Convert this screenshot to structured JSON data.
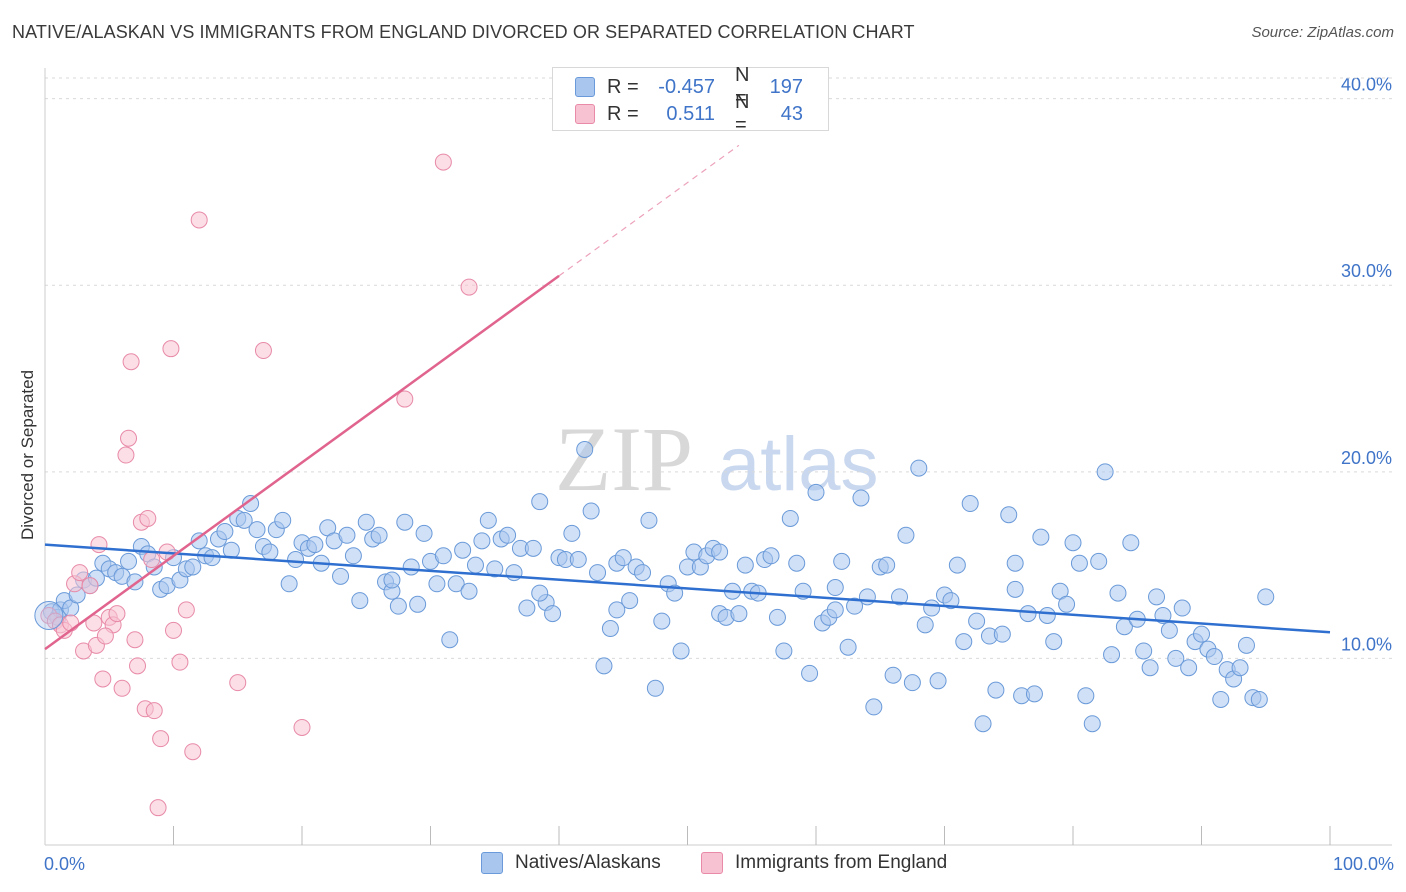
{
  "header": {
    "title": "NATIVE/ALASKAN VS IMMIGRANTS FROM ENGLAND DIVORCED OR SEPARATED CORRELATION CHART",
    "source": "Source: ZipAtlas.com"
  },
  "watermark": {
    "zip": "ZIP",
    "atlas": "atlas"
  },
  "legend_stats": [
    {
      "r_label": "R =",
      "r_value": "-0.457",
      "n_label": "N =",
      "n_value": "197",
      "color": "#a9c6ee",
      "border": "#6a9ad9"
    },
    {
      "r_label": "R =",
      "r_value": "0.511",
      "n_label": "N =",
      "n_value": "43",
      "color": "#f7c3d2",
      "border": "#e88aa8"
    }
  ],
  "bottom_legend": {
    "native": "Natives/Alaskans",
    "england": "Immigrants from England"
  },
  "chart_data": {
    "type": "scatter",
    "title": "NATIVE/ALASKAN VS IMMIGRANTS FROM ENGLAND DIVORCED OR SEPARATED CORRELATION CHART",
    "ylabel": "Divorced or Separated",
    "xlabel": "",
    "xlim": [
      0,
      100
    ],
    "ylim": [
      0,
      40
    ],
    "x_ticks_labels": [
      "0.0%",
      "100.0%"
    ],
    "y_ticks": [
      10,
      20,
      30,
      40
    ],
    "y_tick_labels": [
      "10.0%",
      "20.0%",
      "30.0%",
      "40.0%"
    ],
    "grid": true,
    "colors": {
      "native": "#6a9ad9",
      "native_fill": "#a9c6ee",
      "native_line": "#2f6fcf",
      "england": "#e88aa8",
      "england_fill": "#f7c3d2",
      "england_line": "#e0648e"
    },
    "series": [
      {
        "name": "Natives/Alaskans",
        "trend": {
          "x": [
            0,
            100
          ],
          "y": [
            16.1,
            11.4
          ]
        },
        "points": [
          [
            0.5,
            12.5
          ],
          [
            1,
            12.2
          ],
          [
            1.2,
            12.6
          ],
          [
            1.5,
            13.1
          ],
          [
            2,
            12.7
          ],
          [
            2.5,
            13.4
          ],
          [
            3,
            14.2
          ],
          [
            3.5,
            13.9
          ],
          [
            4,
            14.3
          ],
          [
            4.5,
            15.1
          ],
          [
            5,
            14.8
          ],
          [
            5.5,
            14.6
          ],
          [
            6,
            14.4
          ],
          [
            6.5,
            15.2
          ],
          [
            7,
            14.1
          ],
          [
            7.5,
            16
          ],
          [
            8,
            15.6
          ],
          [
            8.5,
            14.9
          ],
          [
            9,
            13.7
          ],
          [
            9.5,
            13.9
          ],
          [
            10,
            15.4
          ],
          [
            10.5,
            14.2
          ],
          [
            11,
            14.8
          ],
          [
            11.5,
            14.9
          ],
          [
            12,
            16.3
          ],
          [
            12.5,
            15.5
          ],
          [
            13,
            15.4
          ],
          [
            13.5,
            16.4
          ],
          [
            14,
            16.8
          ],
          [
            14.5,
            15.8
          ],
          [
            15,
            17.5
          ],
          [
            15.5,
            17.4
          ],
          [
            16,
            18.3
          ],
          [
            16.5,
            16.9
          ],
          [
            17,
            16
          ],
          [
            17.5,
            15.7
          ],
          [
            18,
            16.9
          ],
          [
            18.5,
            17.4
          ],
          [
            19,
            14
          ],
          [
            19.5,
            15.3
          ],
          [
            20,
            16.2
          ],
          [
            20.5,
            15.9
          ],
          [
            21,
            16.1
          ],
          [
            21.5,
            15.1
          ],
          [
            22,
            17
          ],
          [
            22.5,
            16.3
          ],
          [
            23,
            14.4
          ],
          [
            23.5,
            16.6
          ],
          [
            24,
            15.5
          ],
          [
            24.5,
            13.1
          ],
          [
            25,
            17.3
          ],
          [
            25.5,
            16.4
          ],
          [
            26,
            16.6
          ],
          [
            26.5,
            14.1
          ],
          [
            27,
            13.6
          ],
          [
            27.5,
            12.8
          ],
          [
            28,
            17.3
          ],
          [
            28.5,
            14.9
          ],
          [
            29,
            12.9
          ],
          [
            29.5,
            16.7
          ],
          [
            30,
            15.2
          ],
          [
            30.5,
            14
          ],
          [
            31,
            15.5
          ],
          [
            31.5,
            11
          ],
          [
            32,
            14
          ],
          [
            32.5,
            15.8
          ],
          [
            33,
            13.6
          ],
          [
            33.5,
            15
          ],
          [
            34,
            16.3
          ],
          [
            34.5,
            17.4
          ],
          [
            35,
            14.8
          ],
          [
            35.5,
            16.4
          ],
          [
            36,
            16.6
          ],
          [
            36.5,
            14.6
          ],
          [
            37,
            15.9
          ],
          [
            37.5,
            12.7
          ],
          [
            38,
            15.9
          ],
          [
            38.5,
            18.4
          ],
          [
            39,
            13
          ],
          [
            39.5,
            12.4
          ],
          [
            40,
            15.4
          ],
          [
            40.5,
            15.3
          ],
          [
            41,
            16.7
          ],
          [
            41.5,
            15.3
          ],
          [
            42,
            21.2
          ],
          [
            42.5,
            17.9
          ],
          [
            43,
            14.6
          ],
          [
            43.5,
            9.6
          ],
          [
            44,
            11.6
          ],
          [
            44.5,
            15.1
          ],
          [
            45,
            15.4
          ],
          [
            45.5,
            13.1
          ],
          [
            46,
            14.9
          ],
          [
            46.5,
            14.6
          ],
          [
            47,
            17.4
          ],
          [
            47.5,
            8.4
          ],
          [
            48,
            12
          ],
          [
            48.5,
            14
          ],
          [
            49,
            13.5
          ],
          [
            49.5,
            10.4
          ],
          [
            50,
            14.9
          ],
          [
            50.5,
            15.7
          ],
          [
            51,
            14.9
          ],
          [
            51.5,
            15.5
          ],
          [
            52,
            15.9
          ],
          [
            52.5,
            12.4
          ],
          [
            53,
            12.2
          ],
          [
            53.5,
            13.6
          ],
          [
            54,
            12.4
          ],
          [
            54.5,
            15
          ],
          [
            55,
            13.6
          ],
          [
            55.5,
            13.5
          ],
          [
            56,
            15.3
          ],
          [
            56.5,
            15.5
          ],
          [
            57,
            12.2
          ],
          [
            57.5,
            10.4
          ],
          [
            58,
            17.5
          ],
          [
            58.5,
            15.1
          ],
          [
            59,
            13.6
          ],
          [
            59.5,
            9.2
          ],
          [
            60,
            18.9
          ],
          [
            60.5,
            11.9
          ],
          [
            61,
            12.2
          ],
          [
            61.5,
            12.6
          ],
          [
            62,
            15.2
          ],
          [
            62.5,
            10.6
          ],
          [
            63,
            12.8
          ],
          [
            63.5,
            18.6
          ],
          [
            64,
            13.3
          ],
          [
            64.5,
            7.4
          ],
          [
            65,
            14.9
          ],
          [
            65.5,
            15
          ],
          [
            66,
            9.1
          ],
          [
            66.5,
            13.3
          ],
          [
            67,
            16.6
          ],
          [
            67.5,
            8.7
          ],
          [
            68,
            20.2
          ],
          [
            68.5,
            11.8
          ],
          [
            69,
            12.7
          ],
          [
            69.5,
            8.8
          ],
          [
            70,
            13.4
          ],
          [
            70.5,
            13.1
          ],
          [
            71,
            15
          ],
          [
            71.5,
            10.9
          ],
          [
            72,
            18.3
          ],
          [
            72.5,
            12
          ],
          [
            73,
            6.5
          ],
          [
            73.5,
            11.2
          ],
          [
            74,
            8.3
          ],
          [
            74.5,
            11.3
          ],
          [
            75,
            17.7
          ],
          [
            75.5,
            15.1
          ],
          [
            76,
            8
          ],
          [
            76.5,
            12.4
          ],
          [
            77,
            8.1
          ],
          [
            77.5,
            16.5
          ],
          [
            78,
            12.3
          ],
          [
            78.5,
            10.9
          ],
          [
            79,
            13.6
          ],
          [
            79.5,
            12.9
          ],
          [
            80,
            16.2
          ],
          [
            80.5,
            15.1
          ],
          [
            81,
            8
          ],
          [
            81.5,
            6.5
          ],
          [
            82,
            15.2
          ],
          [
            82.5,
            20
          ],
          [
            83,
            10.2
          ],
          [
            83.5,
            13.5
          ],
          [
            84,
            11.7
          ],
          [
            84.5,
            16.2
          ],
          [
            85,
            12.1
          ],
          [
            85.5,
            10.4
          ],
          [
            86,
            9.5
          ],
          [
            86.5,
            13.3
          ],
          [
            87,
            12.3
          ],
          [
            87.5,
            11.5
          ],
          [
            88,
            10
          ],
          [
            88.5,
            12.7
          ],
          [
            89,
            9.5
          ],
          [
            89.5,
            10.9
          ],
          [
            90,
            11.3
          ],
          [
            90.5,
            10.5
          ],
          [
            91,
            10.1
          ],
          [
            91.5,
            7.8
          ],
          [
            92,
            9.4
          ],
          [
            92.5,
            8.9
          ],
          [
            93,
            9.5
          ],
          [
            93.5,
            10.7
          ],
          [
            94,
            7.9
          ],
          [
            94.5,
            7.8
          ],
          [
            95,
            13.3
          ],
          [
            44.5,
            12.6
          ],
          [
            38.5,
            13.5
          ],
          [
            27,
            14.2
          ],
          [
            52.5,
            15.7
          ],
          [
            61.5,
            13.8
          ],
          [
            75.5,
            13.7
          ]
        ]
      },
      {
        "name": "Immigrants from England",
        "trend": {
          "x": [
            0,
            40
          ],
          "y": [
            10.5,
            30.5
          ]
        },
        "trend_extension": {
          "x": [
            40,
            54
          ],
          "y": [
            30.5,
            37.5
          ]
        },
        "points": [
          [
            0.3,
            12.3
          ],
          [
            0.8,
            12
          ],
          [
            1.2,
            11.8
          ],
          [
            1.5,
            11.5
          ],
          [
            2,
            11.9
          ],
          [
            2.3,
            14
          ],
          [
            2.7,
            14.6
          ],
          [
            3,
            10.4
          ],
          [
            3.5,
            13.9
          ],
          [
            3.8,
            11.9
          ],
          [
            4,
            10.7
          ],
          [
            4.2,
            16.1
          ],
          [
            4.5,
            8.9
          ],
          [
            5,
            12.2
          ],
          [
            5.3,
            11.8
          ],
          [
            5.6,
            12.4
          ],
          [
            6,
            8.4
          ],
          [
            6.3,
            20.9
          ],
          [
            6.5,
            21.8
          ],
          [
            6.7,
            25.9
          ],
          [
            7,
            11
          ],
          [
            7.2,
            9.6
          ],
          [
            7.5,
            17.3
          ],
          [
            7.8,
            7.3
          ],
          [
            8,
            17.5
          ],
          [
            8.3,
            15.3
          ],
          [
            8.5,
            7.2
          ],
          [
            8.8,
            2
          ],
          [
            9,
            5.7
          ],
          [
            9.5,
            15.7
          ],
          [
            9.8,
            26.6
          ],
          [
            10,
            11.5
          ],
          [
            10.5,
            9.8
          ],
          [
            11,
            12.6
          ],
          [
            11.5,
            5
          ],
          [
            12,
            33.5
          ],
          [
            15,
            8.7
          ],
          [
            17,
            26.5
          ],
          [
            20,
            6.3
          ],
          [
            28,
            23.9
          ],
          [
            31,
            36.6
          ],
          [
            33,
            29.9
          ],
          [
            4.7,
            11.2
          ]
        ]
      }
    ]
  }
}
